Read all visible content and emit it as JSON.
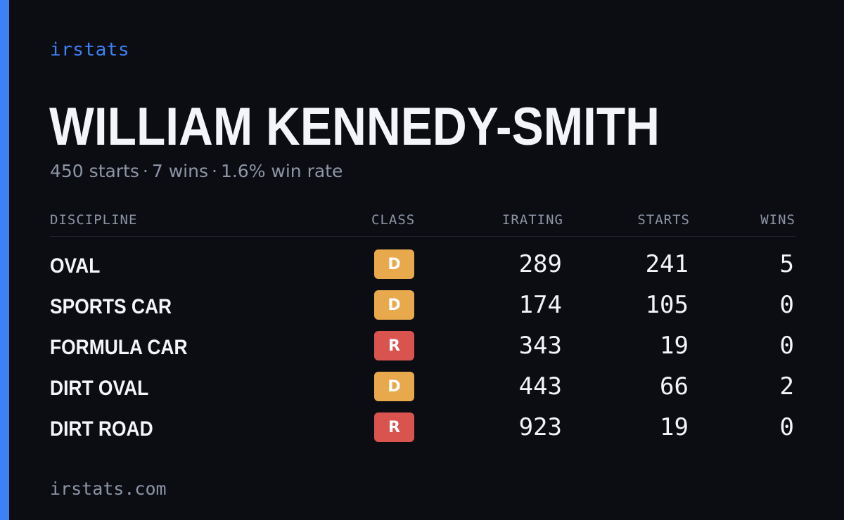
{
  "brand": "irstats",
  "driver": {
    "name": "WILLIAM KENNEDY-SMITH",
    "summary": {
      "starts": "450 starts",
      "wins": "7 wins",
      "win_rate": "1.6% win rate",
      "separator": "·"
    }
  },
  "table": {
    "headers": {
      "discipline": "DISCIPLINE",
      "class": "CLASS",
      "irating": "IRATING",
      "starts": "STARTS",
      "wins": "WINS"
    },
    "rows": [
      {
        "discipline": "OVAL",
        "class": "D",
        "irating": "289",
        "starts": "241",
        "wins": "5"
      },
      {
        "discipline": "SPORTS CAR",
        "class": "D",
        "irating": "174",
        "starts": "105",
        "wins": "0"
      },
      {
        "discipline": "FORMULA CAR",
        "class": "R",
        "irating": "343",
        "starts": "19",
        "wins": "0"
      },
      {
        "discipline": "DIRT OVAL",
        "class": "D",
        "irating": "443",
        "starts": "66",
        "wins": "2"
      },
      {
        "discipline": "DIRT ROAD",
        "class": "R",
        "irating": "923",
        "starts": "19",
        "wins": "0"
      }
    ]
  },
  "class_colors": {
    "D": "#e8a94c",
    "R": "#d9534f"
  },
  "accent_color": "#3b82f6",
  "footer": "irstats.com"
}
